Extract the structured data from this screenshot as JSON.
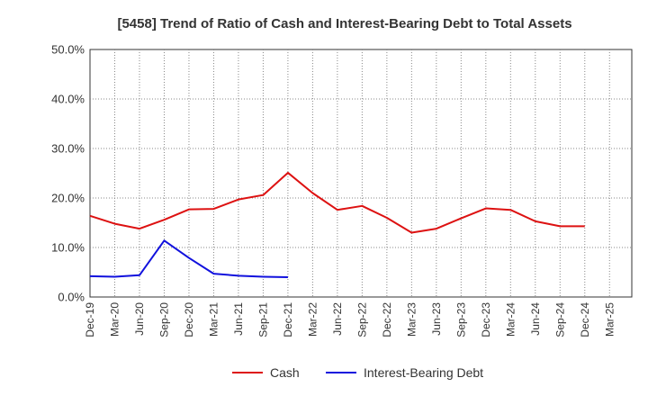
{
  "chart_data": {
    "type": "line",
    "title": "[5458]  Trend of Ratio of Cash and Interest-Bearing Debt to Total Assets",
    "xlabel": "",
    "ylabel": "",
    "ylim": [
      0,
      50
    ],
    "grid": true,
    "legend_position": "bottom",
    "y_ticks": [
      "0.0%",
      "10.0%",
      "20.0%",
      "30.0%",
      "40.0%",
      "50.0%"
    ],
    "categories": [
      "Dec-19",
      "Mar-20",
      "Jun-20",
      "Sep-20",
      "Dec-20",
      "Mar-21",
      "Jun-21",
      "Sep-21",
      "Dec-21",
      "Mar-22",
      "Jun-22",
      "Sep-22",
      "Dec-22",
      "Mar-23",
      "Jun-23",
      "Sep-23",
      "Dec-23",
      "Mar-24",
      "Jun-24",
      "Sep-24",
      "Dec-24",
      "Mar-25"
    ],
    "series": [
      {
        "name": "Cash",
        "color": "#dd1111",
        "values": [
          16.4,
          14.8,
          13.8,
          15.6,
          17.7,
          17.8,
          19.7,
          20.6,
          25.1,
          21.0,
          17.6,
          18.4,
          16.0,
          13.0,
          13.8,
          15.9,
          17.9,
          17.6,
          15.3,
          14.3,
          14.3,
          null
        ]
      },
      {
        "name": "Interest-Bearing Debt",
        "color": "#1111dd",
        "values": [
          4.2,
          4.1,
          4.4,
          11.4,
          7.9,
          4.7,
          4.3,
          4.1,
          4.0,
          null,
          null,
          null,
          null,
          null,
          null,
          null,
          null,
          null,
          null,
          null,
          null,
          null
        ]
      }
    ]
  }
}
